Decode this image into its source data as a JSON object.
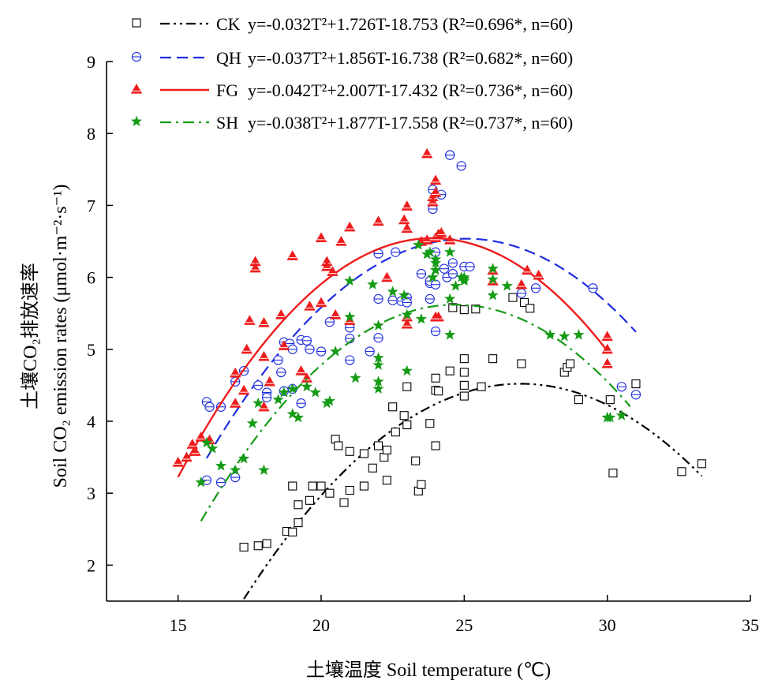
{
  "chart_data": {
    "type": "scatter",
    "title": "",
    "xlabel": "土壤温度 Soil temperature (℃)",
    "ylabel_cn": "土壤CO₂排放速率",
    "ylabel_en": "Soil CO₂ emission rates (μmol·m⁻²·s⁻¹)",
    "xlim": [
      12.5,
      35
    ],
    "ylim": [
      1.5,
      9
    ],
    "xticks": [
      15,
      20,
      25,
      30,
      35
    ],
    "yticks": [
      2,
      3,
      4,
      5,
      6,
      7,
      8,
      9
    ],
    "legend_position": "top",
    "series": [
      {
        "name": "CK",
        "equation": "y=-0.032T²+1.726T-18.753 (R²=0.696*, n=60)",
        "coef": [
          -0.032,
          1.726,
          -18.753
        ],
        "fit_range": [
          17.3,
          33.3
        ],
        "marker": "square",
        "line": "dashdotdot",
        "color": "#000000",
        "points": [
          [
            17.3,
            2.25
          ],
          [
            17.8,
            2.27
          ],
          [
            18.1,
            2.3
          ],
          [
            18.8,
            2.47
          ],
          [
            19.0,
            2.46
          ],
          [
            19.2,
            2.59
          ],
          [
            19.2,
            2.84
          ],
          [
            19.0,
            3.1
          ],
          [
            19.6,
            2.9
          ],
          [
            19.7,
            3.1
          ],
          [
            20.0,
            3.1
          ],
          [
            20.3,
            3.0
          ],
          [
            20.8,
            2.87
          ],
          [
            21.0,
            3.04
          ],
          [
            21.0,
            3.58
          ],
          [
            20.5,
            3.75
          ],
          [
            20.6,
            3.66
          ],
          [
            21.5,
            3.1
          ],
          [
            21.5,
            3.55
          ],
          [
            21.8,
            3.35
          ],
          [
            22.0,
            3.66
          ],
          [
            22.2,
            3.5
          ],
          [
            22.3,
            3.6
          ],
          [
            22.3,
            3.18
          ],
          [
            22.5,
            4.2
          ],
          [
            22.6,
            3.85
          ],
          [
            22.9,
            4.08
          ],
          [
            23.0,
            3.95
          ],
          [
            23.0,
            4.48
          ],
          [
            23.3,
            3.45
          ],
          [
            23.4,
            3.03
          ],
          [
            23.5,
            3.12
          ],
          [
            23.8,
            3.97
          ],
          [
            24.0,
            3.66
          ],
          [
            24.0,
            4.43
          ],
          [
            24.1,
            4.42
          ],
          [
            24.0,
            4.6
          ],
          [
            24.5,
            4.7
          ],
          [
            24.6,
            5.58
          ],
          [
            25.0,
            4.5
          ],
          [
            25.0,
            4.87
          ],
          [
            25.0,
            4.68
          ],
          [
            25.0,
            4.35
          ],
          [
            25.0,
            5.55
          ],
          [
            25.4,
            5.56
          ],
          [
            25.6,
            4.48
          ],
          [
            26.0,
            4.87
          ],
          [
            26.7,
            5.72
          ],
          [
            27.0,
            4.8
          ],
          [
            27.1,
            5.65
          ],
          [
            27.3,
            5.57
          ],
          [
            28.5,
            4.68
          ],
          [
            28.6,
            4.75
          ],
          [
            28.7,
            4.8
          ],
          [
            29.0,
            4.3
          ],
          [
            30.1,
            4.3
          ],
          [
            30.2,
            3.28
          ],
          [
            31.0,
            4.52
          ],
          [
            32.6,
            3.3
          ],
          [
            33.3,
            3.41
          ]
        ]
      },
      {
        "name": "QH",
        "equation": "y=-0.037T²+1.856T-16.738 (R²=0.682*, n=60)",
        "coef": [
          -0.037,
          1.856,
          -16.738
        ],
        "fit_range": [
          16.0,
          31.0
        ],
        "marker": "circle",
        "line": "dash",
        "color": "#1f2ee0",
        "points": [
          [
            16.0,
            4.27
          ],
          [
            16.1,
            4.2
          ],
          [
            16.0,
            3.18
          ],
          [
            16.5,
            4.2
          ],
          [
            16.5,
            3.15
          ],
          [
            17.0,
            4.55
          ],
          [
            17.0,
            3.22
          ],
          [
            17.3,
            4.7
          ],
          [
            17.8,
            4.5
          ],
          [
            18.1,
            4.4
          ],
          [
            18.1,
            4.33
          ],
          [
            18.5,
            4.85
          ],
          [
            18.6,
            4.68
          ],
          [
            18.7,
            4.42
          ],
          [
            18.7,
            5.1
          ],
          [
            18.9,
            5.08
          ],
          [
            19.0,
            4.45
          ],
          [
            19.0,
            5.0
          ],
          [
            19.3,
            4.25
          ],
          [
            19.3,
            5.13
          ],
          [
            19.6,
            5.0
          ],
          [
            19.5,
            5.12
          ],
          [
            20.0,
            4.97
          ],
          [
            20.3,
            5.38
          ],
          [
            21.0,
            5.15
          ],
          [
            21.0,
            5.3
          ],
          [
            21.0,
            4.85
          ],
          [
            21.7,
            4.97
          ],
          [
            22.0,
            5.16
          ],
          [
            22.0,
            5.7
          ],
          [
            22.0,
            6.33
          ],
          [
            22.5,
            5.68
          ],
          [
            22.6,
            6.35
          ],
          [
            22.8,
            5.67
          ],
          [
            23.0,
            5.72
          ],
          [
            23.0,
            5.65
          ],
          [
            23.5,
            6.05
          ],
          [
            23.8,
            5.7
          ],
          [
            23.8,
            5.92
          ],
          [
            23.8,
            5.95
          ],
          [
            24.0,
            5.9
          ],
          [
            23.9,
            6.95
          ],
          [
            23.9,
            7.22
          ],
          [
            24.0,
            6.35
          ],
          [
            24.0,
            5.25
          ],
          [
            24.2,
            7.15
          ],
          [
            24.3,
            6.12
          ],
          [
            24.4,
            6.0
          ],
          [
            24.5,
            7.7
          ],
          [
            24.5,
            7.7
          ],
          [
            24.6,
            6.05
          ],
          [
            24.6,
            6.2
          ],
          [
            24.9,
            7.55
          ],
          [
            25.0,
            6.15
          ],
          [
            25.2,
            6.15
          ],
          [
            27.0,
            5.78
          ],
          [
            27.5,
            5.85
          ],
          [
            29.5,
            5.85
          ],
          [
            30.5,
            4.48
          ],
          [
            31.0,
            4.37
          ]
        ]
      },
      {
        "name": "FG",
        "equation": "y=-0.042T²+2.007T-17.432 (R²=0.736*, n=60)",
        "coef": [
          -0.042,
          2.007,
          -17.432
        ],
        "fit_range": [
          15.0,
          30.0
        ],
        "marker": "triangle",
        "line": "solid",
        "color": "#ee1c1c",
        "points": [
          [
            15.0,
            3.43
          ],
          [
            15.3,
            3.5
          ],
          [
            15.5,
            3.68
          ],
          [
            15.6,
            3.58
          ],
          [
            15.8,
            3.78
          ],
          [
            16.1,
            3.74
          ],
          [
            17.0,
            4.67
          ],
          [
            17.0,
            4.25
          ],
          [
            17.3,
            4.43
          ],
          [
            17.4,
            5.0
          ],
          [
            17.5,
            5.4
          ],
          [
            17.7,
            6.22
          ],
          [
            17.7,
            6.13
          ],
          [
            18.0,
            5.37
          ],
          [
            18.0,
            4.9
          ],
          [
            18.0,
            4.2
          ],
          [
            18.2,
            4.55
          ],
          [
            18.6,
            5.48
          ],
          [
            18.7,
            5.05
          ],
          [
            19.0,
            6.3
          ],
          [
            19.3,
            4.7
          ],
          [
            19.5,
            4.6
          ],
          [
            19.6,
            5.6
          ],
          [
            20.0,
            6.55
          ],
          [
            20.0,
            5.65
          ],
          [
            20.2,
            6.22
          ],
          [
            20.2,
            6.15
          ],
          [
            20.4,
            6.08
          ],
          [
            20.5,
            5.48
          ],
          [
            20.7,
            6.5
          ],
          [
            21.0,
            6.7
          ],
          [
            21.0,
            5.4
          ],
          [
            22.0,
            6.78
          ],
          [
            22.3,
            6.0
          ],
          [
            22.9,
            6.8
          ],
          [
            23.0,
            6.68
          ],
          [
            23.0,
            6.99
          ],
          [
            23.0,
            5.35
          ],
          [
            23.0,
            5.45
          ],
          [
            23.5,
            6.5
          ],
          [
            23.7,
            7.72
          ],
          [
            23.7,
            6.52
          ],
          [
            23.9,
            7.12
          ],
          [
            23.9,
            7.05
          ],
          [
            24.0,
            7.18
          ],
          [
            24.0,
            7.35
          ],
          [
            24.0,
            6.55
          ],
          [
            24.1,
            6.6
          ],
          [
            24.2,
            6.62
          ],
          [
            24.1,
            5.45
          ],
          [
            24.5,
            6.52
          ],
          [
            24.0,
            5.45
          ],
          [
            26.0,
            6.1
          ],
          [
            26.0,
            5.95
          ],
          [
            27.0,
            5.9
          ],
          [
            27.2,
            6.1
          ],
          [
            27.6,
            6.03
          ],
          [
            30.0,
            5.18
          ],
          [
            30.0,
            4.8
          ],
          [
            30.0,
            5.0
          ]
        ]
      },
      {
        "name": "SH",
        "equation": "y=-0.038T²+1.877T-17.558 (R²=0.737*, n=60)",
        "coef": [
          -0.038,
          1.877,
          -17.558
        ],
        "fit_range": [
          15.8,
          30.8
        ],
        "marker": "star",
        "line": "dashdot",
        "color": "#159b15",
        "points": [
          [
            15.8,
            3.15
          ],
          [
            16.0,
            3.7
          ],
          [
            16.2,
            3.62
          ],
          [
            16.5,
            3.38
          ],
          [
            17.0,
            3.32
          ],
          [
            17.3,
            3.48
          ],
          [
            17.6,
            3.97
          ],
          [
            17.8,
            4.25
          ],
          [
            18.0,
            3.32
          ],
          [
            18.5,
            4.3
          ],
          [
            18.7,
            4.4
          ],
          [
            19.0,
            4.45
          ],
          [
            19.0,
            4.1
          ],
          [
            19.2,
            4.05
          ],
          [
            19.5,
            4.48
          ],
          [
            19.8,
            4.4
          ],
          [
            20.2,
            4.25
          ],
          [
            20.3,
            4.28
          ],
          [
            20.5,
            4.97
          ],
          [
            21.0,
            5.45
          ],
          [
            21.0,
            5.95
          ],
          [
            21.2,
            4.6
          ],
          [
            21.8,
            5.9
          ],
          [
            22.0,
            4.78
          ],
          [
            22.0,
            4.88
          ],
          [
            22.0,
            5.33
          ],
          [
            22.0,
            4.45
          ],
          [
            22.0,
            4.55
          ],
          [
            22.5,
            5.8
          ],
          [
            22.9,
            5.75
          ],
          [
            23.0,
            5.48
          ],
          [
            23.0,
            4.7
          ],
          [
            23.4,
            6.45
          ],
          [
            23.5,
            5.42
          ],
          [
            23.7,
            6.32
          ],
          [
            23.8,
            6.35
          ],
          [
            24.0,
            6.2
          ],
          [
            24.0,
            6.25
          ],
          [
            23.9,
            6.0
          ],
          [
            24.0,
            6.1
          ],
          [
            24.5,
            6.35
          ],
          [
            24.5,
            5.7
          ],
          [
            24.5,
            5.2
          ],
          [
            24.7,
            5.88
          ],
          [
            24.9,
            6.0
          ],
          [
            25.0,
            6.0
          ],
          [
            25.0,
            5.95
          ],
          [
            26.0,
            6.12
          ],
          [
            26.0,
            5.97
          ],
          [
            26.5,
            5.88
          ],
          [
            26.0,
            5.75
          ],
          [
            28.0,
            5.2
          ],
          [
            28.5,
            5.18
          ],
          [
            29.0,
            5.2
          ],
          [
            30.0,
            4.05
          ],
          [
            30.1,
            4.05
          ],
          [
            30.5,
            4.08
          ],
          [
            30.0,
            4.05
          ],
          [
            25.0,
            5.98
          ],
          [
            24.0,
            6.1
          ]
        ]
      }
    ]
  }
}
